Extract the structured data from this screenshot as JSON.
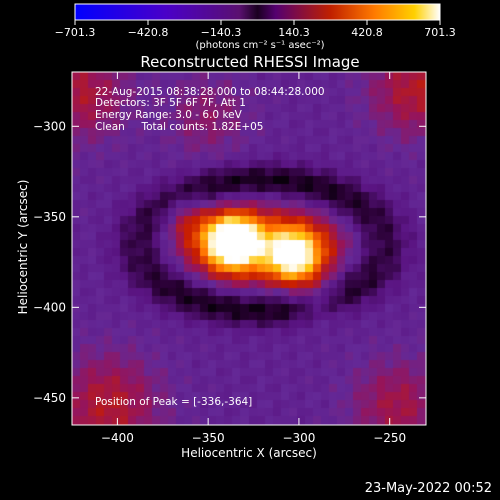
{
  "chart_data": {
    "type": "heatmap",
    "title": "Reconstructed RHESSI Image",
    "xlabel": "Heliocentric X (arcsec)",
    "ylabel": "Heliocentric Y (arcsec)",
    "xlim": [
      -425,
      -230
    ],
    "ylim": [
      -465,
      -270
    ],
    "xticks": [
      -400,
      -350,
      -300,
      -250
    ],
    "yticks": [
      -300,
      -350,
      -400,
      -450
    ],
    "colorbar": {
      "min": -701.3,
      "max": 701.3,
      "ticks": [
        "-701.3",
        "-420.8",
        "-140.3",
        "140.3",
        "420.8",
        "701.3"
      ],
      "unit_label": "(photons cm⁻² s⁻¹ asec⁻²)"
    },
    "annotations": {
      "time_range": "22-Aug-2015 08:38:28.000 to 08:44:28.000",
      "detectors": "Detectors: 3F 5F 6F 7F, Att 1",
      "energy_range": "Energy Range: 3.0 - 6.0 keV",
      "method_counts": "Clean     Total counts: 1.82E+05",
      "peak_position": "Position of Peak = [-336,-364]"
    },
    "sources": [
      {
        "x": -336,
        "y": -364,
        "value": 701.3
      },
      {
        "x": -303,
        "y": -372,
        "value": 520
      }
    ]
  },
  "footer": {
    "timestamp": "23-May-2022 00:52"
  },
  "colors": {
    "background": "#000000",
    "foreground": "#ffffff"
  }
}
